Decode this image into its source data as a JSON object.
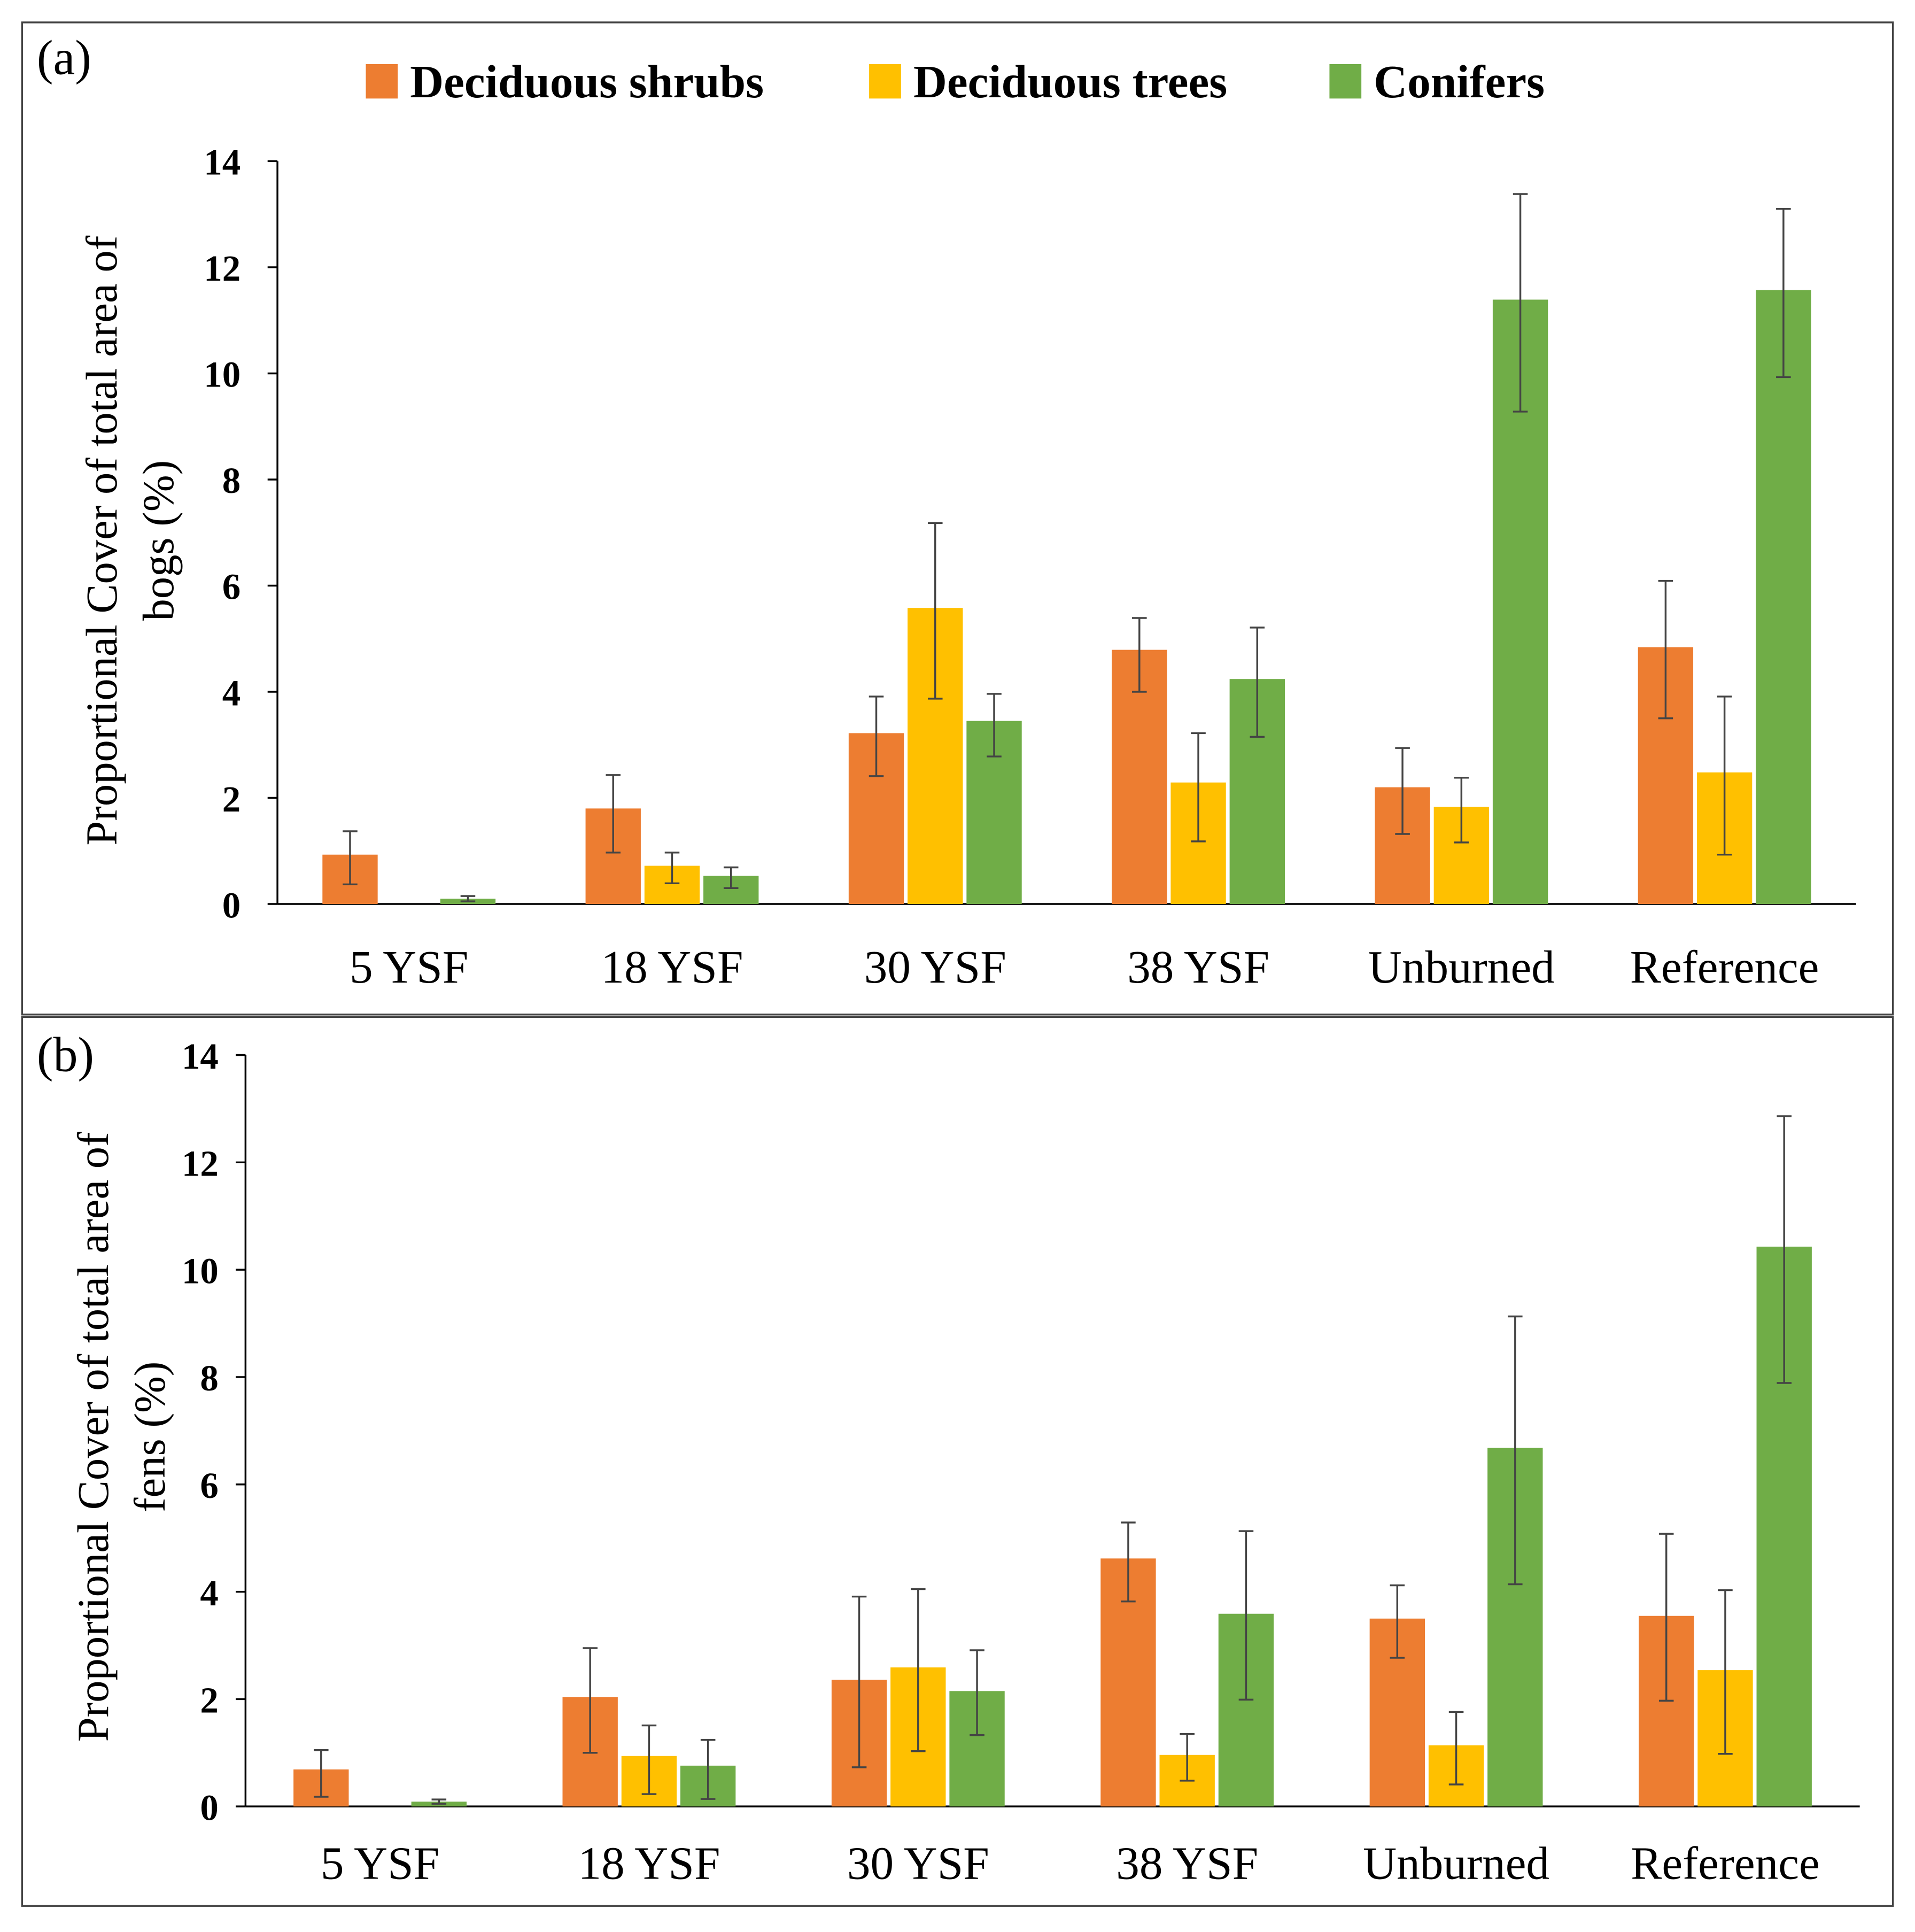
{
  "legend": [
    "Deciduous shrubs",
    "Deciduous trees",
    "Conifers"
  ],
  "colors": [
    "#ED7D31",
    "#FFC000",
    "#70AD47"
  ],
  "chart_data": [
    {
      "type": "bar",
      "panel_label": "(a)",
      "ylabel_lines": [
        "Proportional Cover of total area of",
        "bogs (%)"
      ],
      "ylim": [
        0,
        14
      ],
      "yticks": [
        "0",
        "2",
        "4",
        "6",
        "8",
        "10",
        "12",
        "14"
      ],
      "categories": [
        "5 YSF",
        "18 YSF",
        "30 YSF",
        "38 YSF",
        "Unburned",
        "Reference"
      ],
      "series": [
        {
          "name": "Deciduous shrubs",
          "values": [
            0.93,
            1.8,
            3.22,
            4.79,
            2.2,
            4.84
          ],
          "err_low": [
            0.37,
            0.97,
            2.41,
            4.0,
            1.32,
            3.5
          ],
          "err_high": [
            1.37,
            2.43,
            3.91,
            5.39,
            2.94,
            6.09
          ]
        },
        {
          "name": "Deciduous trees",
          "values": [
            0,
            0.72,
            5.58,
            2.29,
            1.83,
            2.48
          ],
          "err_low": [
            0,
            0.39,
            3.87,
            1.18,
            1.16,
            0.93
          ],
          "err_high": [
            0,
            0.97,
            7.18,
            3.22,
            2.38,
            3.91
          ]
        },
        {
          "name": "Conifers",
          "values": [
            0.1,
            0.53,
            3.45,
            4.24,
            11.39,
            11.57
          ],
          "err_low": [
            0.05,
            0.3,
            2.78,
            3.15,
            9.28,
            9.93
          ],
          "err_high": [
            0.15,
            0.69,
            3.96,
            5.21,
            13.38,
            13.1
          ]
        }
      ]
    },
    {
      "type": "bar",
      "panel_label": "(b)",
      "ylabel_lines": [
        "Proportional Cover of total area of",
        "fens (%)"
      ],
      "ylim": [
        0,
        14
      ],
      "yticks": [
        "0",
        "2",
        "4",
        "6",
        "8",
        "10",
        "12",
        "14"
      ],
      "categories": [
        "5 YSF",
        "18 YSF",
        "30 YSF",
        "38 YSF",
        "Unburned",
        "Reference"
      ],
      "series": [
        {
          "name": "Deciduous shrubs",
          "values": [
            0.69,
            2.04,
            2.36,
            4.62,
            3.5,
            3.55
          ],
          "err_low": [
            0.18,
            1.0,
            0.73,
            3.82,
            2.77,
            1.97
          ],
          "err_high": [
            1.05,
            2.95,
            3.91,
            5.29,
            4.12,
            5.08
          ]
        },
        {
          "name": "Deciduous trees",
          "values": [
            0,
            0.94,
            2.59,
            0.96,
            1.14,
            2.54
          ],
          "err_low": [
            0,
            0.23,
            1.03,
            0.48,
            0.41,
            0.98
          ],
          "err_high": [
            0,
            1.51,
            4.05,
            1.35,
            1.76,
            4.03
          ]
        },
        {
          "name": "Conifers",
          "values": [
            0.09,
            0.76,
            2.15,
            3.59,
            6.68,
            10.43
          ],
          "err_low": [
            0.05,
            0.14,
            1.33,
            1.99,
            4.14,
            7.89
          ],
          "err_high": [
            0.13,
            1.24,
            2.91,
            5.13,
            9.13,
            12.86
          ]
        }
      ]
    }
  ]
}
